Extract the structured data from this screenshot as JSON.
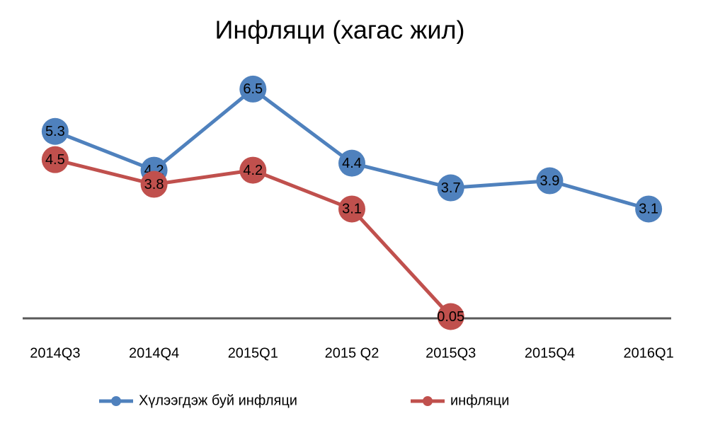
{
  "chart_data": {
    "type": "line",
    "title": "Инфляци (хагас жил)",
    "categories": [
      "2014Q3",
      "2014Q4",
      "2015Q1",
      "2015 Q2",
      "2015Q3",
      "2015Q4",
      "2016Q1"
    ],
    "series": [
      {
        "name": "Хүлээгдэж буй инфляци",
        "color": "#4f81bd",
        "values": [
          5.3,
          4.2,
          6.5,
          4.4,
          3.7,
          3.9,
          3.1
        ]
      },
      {
        "name": "инфляци",
        "color": "#c0504d",
        "values": [
          4.5,
          3.8,
          4.2,
          3.1,
          0.05,
          null,
          null
        ]
      }
    ],
    "ylim": [
      0,
      7
    ]
  }
}
